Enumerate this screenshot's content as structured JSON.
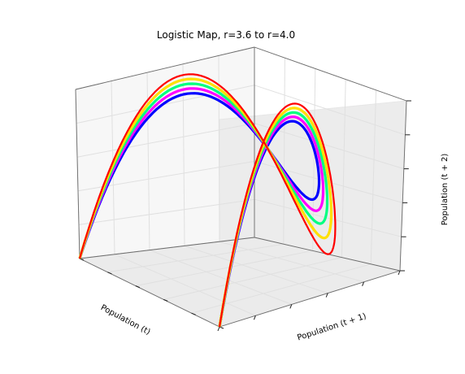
{
  "chart_data": {
    "type": "scatter",
    "title": "Logistic Map, r=3.6 to r=4.0",
    "xlabel": "Population (t)",
    "ylabel": "Population (t + 1)",
    "zlabel": "Population (t + 2)",
    "xlim": [
      0,
      1
    ],
    "ylim": [
      0,
      1
    ],
    "zlim": [
      0,
      1
    ],
    "r_range": [
      3.6,
      4.0
    ],
    "colormap": "gist_rainbow",
    "color_range": [
      "#0000ff",
      "#ff0000"
    ],
    "grid": true,
    "series": [
      {
        "r": 3.6,
        "color": "#0000ff"
      },
      {
        "r": 3.7,
        "color": "#ff00ff"
      },
      {
        "r": 3.8,
        "color": "#00ff80"
      },
      {
        "r": 3.9,
        "color": "#ffe000"
      },
      {
        "r": 4.0,
        "color": "#ff0000"
      }
    ]
  }
}
